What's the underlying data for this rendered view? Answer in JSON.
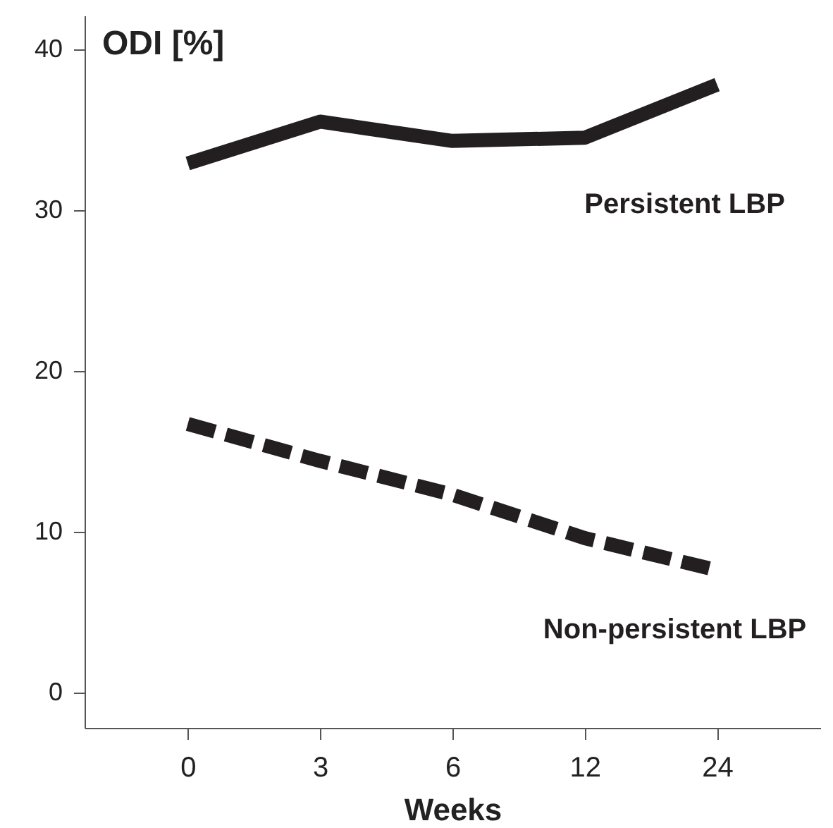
{
  "chart_data": {
    "type": "line",
    "ylabel": "ODI [%]",
    "xlabel": "Weeks",
    "categories": [
      "0",
      "3",
      "6",
      "12",
      "24"
    ],
    "series": [
      {
        "name": "Persistent  LBP",
        "color": "#231f20",
        "line_style": "solid",
        "values": [
          32.9,
          35.5,
          34.3,
          34.5,
          37.8
        ]
      },
      {
        "name": "Non-persistent LBP",
        "color": "#231f20",
        "line_style": "dashed",
        "values": [
          16.7,
          14.4,
          12.3,
          9.6,
          7.6
        ]
      }
    ],
    "ylim": [
      -2.2,
      42.1
    ],
    "yticks": [
      0,
      10,
      20,
      30,
      40
    ],
    "grid": false,
    "marker": "none"
  }
}
